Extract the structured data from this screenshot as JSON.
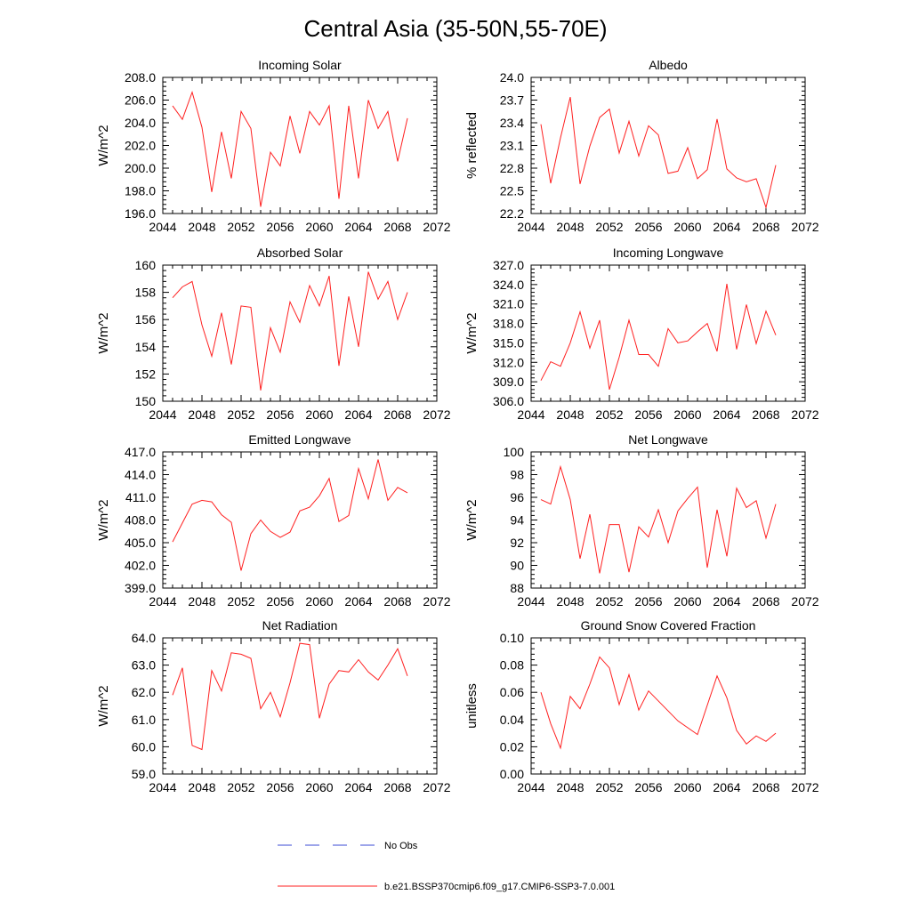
{
  "figure": {
    "title": "Central Asia (35-50N,55-70E)",
    "legend": [
      {
        "label": "No Obs",
        "color": "#3b4bd6",
        "style": "dashed"
      },
      {
        "label": "b.e21.BSSP370cmip6.f09_g17.CMIP6-SSP3-7.0.001",
        "color": "#ff2020",
        "style": "solid"
      }
    ]
  },
  "chart_data": [
    {
      "type": "line",
      "title": "Incoming Solar",
      "ylabel": "W/m^2",
      "xlabel": "",
      "xlim": [
        2044,
        2072
      ],
      "ylim": [
        196,
        208
      ],
      "xticks": [
        "2044",
        "2048",
        "2052",
        "2056",
        "2060",
        "2064",
        "2068",
        "2072"
      ],
      "yticks": [
        "196.0",
        "198.0",
        "200.0",
        "202.0",
        "204.0",
        "206.0",
        "208.0"
      ],
      "series": [
        {
          "color": "#ff2020",
          "x": [
            2045,
            2046,
            2047,
            2048,
            2049,
            2050,
            2051,
            2052,
            2053,
            2054,
            2055,
            2056,
            2057,
            2058,
            2059,
            2060,
            2061,
            2062,
            2063,
            2064,
            2065,
            2066,
            2067,
            2068,
            2069
          ],
          "values": [
            205.5,
            204.3,
            206.7,
            203.6,
            197.9,
            203.2,
            199.1,
            205.0,
            203.5,
            196.6,
            201.4,
            200.2,
            204.6,
            201.3,
            205.0,
            203.8,
            205.5,
            197.3,
            205.5,
            199.1,
            206.0,
            203.5,
            205.0,
            200.6,
            204.4
          ]
        }
      ]
    },
    {
      "type": "line",
      "title": "Albedo",
      "ylabel": "% reflected",
      "xlabel": "",
      "xlim": [
        2044,
        2072
      ],
      "ylim": [
        22.2,
        24.0
      ],
      "xticks": [
        "2044",
        "2048",
        "2052",
        "2056",
        "2060",
        "2064",
        "2068",
        "2072"
      ],
      "yticks": [
        "22.2",
        "22.5",
        "22.8",
        "23.1",
        "23.4",
        "23.7",
        "24.0"
      ],
      "series": [
        {
          "color": "#ff2020",
          "x": [
            2045,
            2046,
            2047,
            2048,
            2049,
            2050,
            2051,
            2052,
            2053,
            2054,
            2055,
            2056,
            2057,
            2058,
            2059,
            2060,
            2061,
            2062,
            2063,
            2064,
            2065,
            2066,
            2067,
            2068,
            2069
          ],
          "values": [
            23.38,
            22.6,
            23.2,
            23.74,
            22.59,
            23.09,
            23.47,
            23.58,
            23.0,
            23.42,
            22.96,
            23.36,
            23.24,
            22.73,
            22.76,
            23.07,
            22.66,
            22.78,
            23.45,
            22.79,
            22.67,
            22.62,
            22.66,
            22.28,
            22.84
          ]
        }
      ]
    },
    {
      "type": "line",
      "title": "Absorbed Solar",
      "ylabel": "W/m^2",
      "xlabel": "",
      "xlim": [
        2044,
        2072
      ],
      "ylim": [
        150,
        160
      ],
      "xticks": [
        "2044",
        "2048",
        "2052",
        "2056",
        "2060",
        "2064",
        "2068",
        "2072"
      ],
      "yticks": [
        "150",
        "152",
        "154",
        "156",
        "158",
        "160"
      ],
      "series": [
        {
          "color": "#ff2020",
          "x": [
            2045,
            2046,
            2047,
            2048,
            2049,
            2050,
            2051,
            2052,
            2053,
            2054,
            2055,
            2056,
            2057,
            2058,
            2059,
            2060,
            2061,
            2062,
            2063,
            2064,
            2065,
            2066,
            2067,
            2068,
            2069
          ],
          "values": [
            157.6,
            158.4,
            158.8,
            155.6,
            153.3,
            156.5,
            152.7,
            157.0,
            156.9,
            150.8,
            155.4,
            153.6,
            157.3,
            155.8,
            158.5,
            157.0,
            159.2,
            152.6,
            157.7,
            154.0,
            159.5,
            157.5,
            158.8,
            156.0,
            158.0
          ]
        }
      ]
    },
    {
      "type": "line",
      "title": "Incoming Longwave",
      "ylabel": "W/m^2",
      "xlabel": "",
      "xlim": [
        2044,
        2072
      ],
      "ylim": [
        306,
        327
      ],
      "xticks": [
        "2044",
        "2048",
        "2052",
        "2056",
        "2060",
        "2064",
        "2068",
        "2072"
      ],
      "yticks": [
        "306.0",
        "309.0",
        "312.0",
        "315.0",
        "318.0",
        "321.0",
        "324.0",
        "327.0"
      ],
      "series": [
        {
          "color": "#ff2020",
          "x": [
            2045,
            2046,
            2047,
            2048,
            2049,
            2050,
            2051,
            2052,
            2053,
            2054,
            2055,
            2056,
            2057,
            2058,
            2059,
            2060,
            2061,
            2062,
            2063,
            2064,
            2065,
            2066,
            2067,
            2068,
            2069
          ],
          "values": [
            309.2,
            312.1,
            311.4,
            315.0,
            319.8,
            314.2,
            318.5,
            307.8,
            312.8,
            318.5,
            313.2,
            313.2,
            311.4,
            317.2,
            315.0,
            315.3,
            316.7,
            318.0,
            313.7,
            324.1,
            314.0,
            320.9,
            314.9,
            319.9,
            316.2
          ]
        }
      ]
    },
    {
      "type": "line",
      "title": "Emitted Longwave",
      "ylabel": "W/m^2",
      "xlabel": "",
      "xlim": [
        2044,
        2072
      ],
      "ylim": [
        399,
        417
      ],
      "xticks": [
        "2044",
        "2048",
        "2052",
        "2056",
        "2060",
        "2064",
        "2068",
        "2072"
      ],
      "yticks": [
        "399.0",
        "402.0",
        "405.0",
        "408.0",
        "411.0",
        "414.0",
        "417.0"
      ],
      "series": [
        {
          "color": "#ff2020",
          "x": [
            2045,
            2046,
            2047,
            2048,
            2049,
            2050,
            2051,
            2052,
            2053,
            2054,
            2055,
            2056,
            2057,
            2058,
            2059,
            2060,
            2061,
            2062,
            2063,
            2064,
            2065,
            2066,
            2067,
            2068,
            2069
          ],
          "values": [
            405.1,
            407.6,
            410.1,
            410.6,
            410.4,
            408.7,
            407.7,
            401.3,
            406.2,
            408.0,
            406.5,
            405.7,
            406.4,
            409.2,
            409.7,
            411.2,
            413.5,
            407.8,
            408.6,
            414.8,
            410.8,
            416.0,
            410.6,
            412.3,
            411.6
          ]
        }
      ]
    },
    {
      "type": "line",
      "title": "Net Longwave",
      "ylabel": "W/m^2",
      "xlabel": "",
      "xlim": [
        2044,
        2072
      ],
      "ylim": [
        88,
        100
      ],
      "xticks": [
        "2044",
        "2048",
        "2052",
        "2056",
        "2060",
        "2064",
        "2068",
        "2072"
      ],
      "yticks": [
        "88",
        "90",
        "92",
        "94",
        "96",
        "98",
        "100"
      ],
      "series": [
        {
          "color": "#ff2020",
          "x": [
            2045,
            2046,
            2047,
            2048,
            2049,
            2050,
            2051,
            2052,
            2053,
            2054,
            2055,
            2056,
            2057,
            2058,
            2059,
            2060,
            2061,
            2062,
            2063,
            2064,
            2065,
            2066,
            2067,
            2068,
            2069
          ],
          "values": [
            95.8,
            95.4,
            98.7,
            95.8,
            90.6,
            94.5,
            89.3,
            93.6,
            93.6,
            89.4,
            93.4,
            92.5,
            94.9,
            92.0,
            94.8,
            95.9,
            96.9,
            89.8,
            94.9,
            90.8,
            96.8,
            95.1,
            95.7,
            92.4,
            95.4
          ]
        }
      ]
    },
    {
      "type": "line",
      "title": "Net Radiation",
      "ylabel": "W/m^2",
      "xlabel": "",
      "xlim": [
        2044,
        2072
      ],
      "ylim": [
        59,
        64
      ],
      "xticks": [
        "2044",
        "2048",
        "2052",
        "2056",
        "2060",
        "2064",
        "2068",
        "2072"
      ],
      "yticks": [
        "59.0",
        "60.0",
        "61.0",
        "62.0",
        "63.0",
        "64.0"
      ],
      "series": [
        {
          "color": "#ff2020",
          "x": [
            2045,
            2046,
            2047,
            2048,
            2049,
            2050,
            2051,
            2052,
            2053,
            2054,
            2055,
            2056,
            2057,
            2058,
            2059,
            2060,
            2061,
            2062,
            2063,
            2064,
            2065,
            2066,
            2067,
            2068,
            2069
          ],
          "values": [
            61.9,
            62.9,
            60.05,
            59.9,
            62.8,
            62.05,
            63.45,
            63.4,
            63.25,
            61.4,
            62.0,
            61.1,
            62.35,
            63.8,
            63.75,
            61.05,
            62.3,
            62.8,
            62.75,
            63.2,
            62.75,
            62.45,
            63.0,
            63.6,
            62.6
          ]
        }
      ]
    },
    {
      "type": "line",
      "title": "Ground Snow Covered Fraction",
      "ylabel": "unitless",
      "xlabel": "",
      "xlim": [
        2044,
        2072
      ],
      "ylim": [
        0.0,
        0.1
      ],
      "xticks": [
        "2044",
        "2048",
        "2052",
        "2056",
        "2060",
        "2064",
        "2068",
        "2072"
      ],
      "yticks": [
        "0.00",
        "0.02",
        "0.04",
        "0.06",
        "0.08",
        "0.10"
      ],
      "series": [
        {
          "color": "#ff2020",
          "x": [
            2045,
            2046,
            2047,
            2048,
            2049,
            2050,
            2051,
            2052,
            2053,
            2054,
            2055,
            2056,
            2059,
            2061,
            2063,
            2064,
            2065,
            2066,
            2067,
            2068,
            2069
          ],
          "values": [
            0.06,
            0.037,
            0.019,
            0.057,
            0.048,
            0.066,
            0.086,
            0.078,
            0.051,
            0.073,
            0.047,
            0.061,
            0.039,
            0.029,
            0.072,
            0.056,
            0.032,
            0.022,
            0.028,
            0.024,
            0.03
          ]
        }
      ]
    }
  ]
}
